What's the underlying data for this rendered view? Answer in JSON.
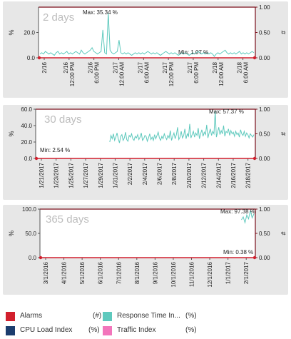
{
  "chart_data": [
    {
      "type": "line",
      "period": "2 days",
      "ylabel_left": "%",
      "ylabel_right": "#",
      "ylim_left": [
        0,
        40
      ],
      "ylim_right": [
        0,
        1
      ],
      "yticks_left": [
        "0.0",
        "20.0"
      ],
      "yticks_right": [
        "0.00",
        "0.50",
        "1.00"
      ],
      "xticks": [
        "2/16",
        "2/16\n12:00 PM",
        "2/16\n6:00 PM",
        "2/17\n12:00 AM",
        "2/17\n6:00 AM",
        "2/17\n12:00 PM",
        "2/17\n6:00 PM",
        "2/18\n12:00 AM",
        "2/18\n6:00 AM"
      ],
      "max_label": "Max: 35.34 %",
      "min_label": "Min: 1.07 %",
      "series": [
        {
          "name": "Response Time Index",
          "values": [
            3,
            4,
            3,
            5,
            4,
            3,
            4,
            3,
            2,
            4,
            5,
            3,
            4,
            3,
            4,
            5,
            3,
            4,
            3,
            4,
            5,
            4,
            3,
            6,
            4,
            3,
            4,
            5,
            6,
            8,
            5,
            4,
            3,
            4,
            5,
            22,
            4,
            3,
            35.34,
            6,
            4,
            3,
            4,
            5,
            14,
            4,
            3,
            4,
            3,
            4,
            3,
            2,
            3,
            4,
            3,
            4,
            3,
            4,
            3,
            4,
            5,
            4,
            3,
            4,
            3,
            4,
            3,
            2,
            3,
            4,
            5,
            4,
            3,
            4,
            3,
            4,
            3,
            2,
            3,
            4,
            3,
            4,
            3,
            2,
            3,
            4,
            3,
            4,
            5,
            4,
            3,
            4,
            3,
            4,
            3,
            4,
            3,
            1.07,
            3,
            4,
            3,
            4,
            5,
            6,
            4,
            3,
            4,
            3,
            4,
            3,
            4,
            5,
            3,
            4,
            3,
            4,
            3,
            4,
            5,
            4
          ]
        }
      ]
    },
    {
      "type": "line",
      "period": "30 days",
      "ylabel_left": "%",
      "ylabel_right": "#",
      "ylim_left": [
        0,
        60
      ],
      "ylim_right": [
        0,
        1
      ],
      "yticks_left": [
        "0.0",
        "20.0",
        "40.0",
        "60.0"
      ],
      "yticks_right": [
        "0.00",
        "0.50",
        "1.00"
      ],
      "xticks": [
        "1/21/2017",
        "1/23/2017",
        "1/25/2017",
        "1/27/2017",
        "1/29/2017",
        "1/31/2017",
        "2/2/2017",
        "2/4/2017",
        "2/6/2017",
        "2/8/2017",
        "2/10/2017",
        "2/12/2017",
        "2/14/2017",
        "2/16/2017",
        "2/18/2017"
      ],
      "max_label": "Max: 57.37 %",
      "min_label": "Min: 2.54 %",
      "series": [
        {
          "name": "Response Time Index",
          "start_index": 60,
          "values": [
            20,
            28,
            24,
            30,
            22,
            26,
            31,
            24,
            19,
            27,
            29,
            22,
            25,
            32,
            23,
            21,
            28,
            26,
            30,
            24,
            22,
            27,
            25,
            29,
            23,
            26,
            31,
            22,
            24,
            28,
            27,
            21,
            25,
            30,
            23,
            26,
            22,
            29,
            24,
            28,
            32,
            25,
            22,
            27,
            24,
            30,
            26,
            23,
            28,
            25,
            34,
            22,
            27,
            31,
            24,
            29,
            38,
            23,
            26,
            33,
            25,
            28,
            36,
            24,
            30,
            27,
            42,
            25,
            29,
            33,
            26,
            31,
            28,
            37,
            24,
            30,
            35,
            27,
            32,
            29,
            41,
            25,
            31,
            36,
            28,
            33,
            30,
            57.37,
            26,
            32,
            38,
            29,
            34,
            30,
            40,
            27,
            33,
            31,
            36,
            28,
            34,
            30,
            32,
            27,
            33,
            29,
            31,
            26,
            35,
            30,
            28,
            33,
            27,
            31,
            29,
            25,
            30,
            28,
            26,
            29
          ]
        }
      ]
    },
    {
      "type": "line",
      "period": "365 days",
      "ylabel_left": "%",
      "ylabel_right": "#",
      "ylim_left": [
        0,
        100
      ],
      "ylim_right": [
        0,
        1
      ],
      "yticks_left": [
        "0.0",
        "50.0",
        "100.0"
      ],
      "yticks_right": [
        "0.00",
        "0.50",
        "1.00"
      ],
      "xticks": [
        "3/1/2016",
        "4/1/2016",
        "5/1/2016",
        "6/1/2016",
        "7/1/2016",
        "8/1/2016",
        "9/1/2016",
        "10/1/2016",
        "11/1/2016",
        "12/1/2016",
        "1/1/2017",
        "2/1/2017"
      ],
      "max_label": "Max: 97.38 %",
      "min_label": "Min: 0.38 %",
      "series": [
        {
          "name": "Response Time Index",
          "start_index": 112,
          "values": [
            78,
            84,
            72,
            88,
            80,
            97.38,
            82,
            90
          ]
        }
      ]
    }
  ],
  "legend": [
    {
      "name": "Alarms",
      "unit": "(#)",
      "color": "#d21f2d"
    },
    {
      "name": "Response Time In...",
      "unit": "(%)",
      "color": "#5ec9bd"
    },
    {
      "name": "CPU Load Index",
      "unit": "(%)",
      "color": "#1b3d6e"
    },
    {
      "name": "Traffic Index",
      "unit": "(%)",
      "color": "#f275bb"
    }
  ],
  "colors": {
    "alarms": "#d21f2d",
    "response_time": "#5ec9bd",
    "cpu_load": "#1b3d6e",
    "traffic": "#f275bb"
  }
}
